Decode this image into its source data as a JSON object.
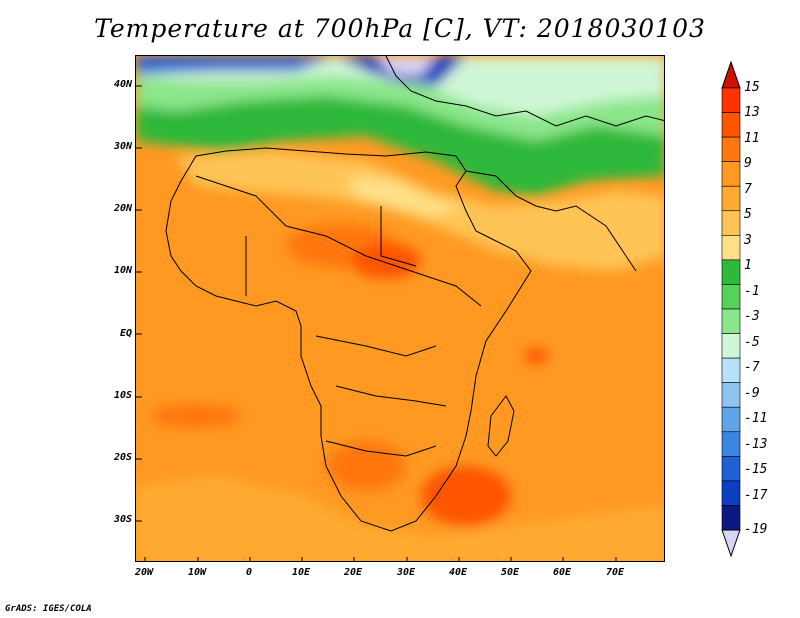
{
  "title": "Temperature at 700hPa [C], VT: 2018030103",
  "credit": "GrADS: IGES/COLA",
  "lat_labels": [
    "40N",
    "30N",
    "20N",
    "10N",
    "EQ",
    "10S",
    "20S",
    "30S"
  ],
  "lon_labels": [
    "20W",
    "10W",
    "0",
    "10E",
    "20E",
    "30E",
    "40E",
    "50E",
    "60E",
    "70E"
  ],
  "colorbar": {
    "labels": [
      "15",
      "13",
      "11",
      "9",
      "7",
      "5",
      "3",
      "1",
      "-1",
      "-3",
      "-5",
      "-7",
      "-9",
      "-11",
      "-13",
      "-15",
      "-17",
      "-19"
    ],
    "colors": [
      "#ff3300",
      "#ff5500",
      "#ff7711",
      "#ff9922",
      "#ffaa33",
      "#ffc455",
      "#ffe088",
      "#2fb83a",
      "#55d25a",
      "#8ae68a",
      "#cff6d6",
      "#b7e2fb",
      "#8dc4f0",
      "#5fa5e8",
      "#3a85e0",
      "#1f60d6",
      "#0c3ec2",
      "#0a1a80"
    ],
    "top_arrow_color": "#cc1100",
    "bottom_arrow_color": "#d8d4f4"
  }
}
